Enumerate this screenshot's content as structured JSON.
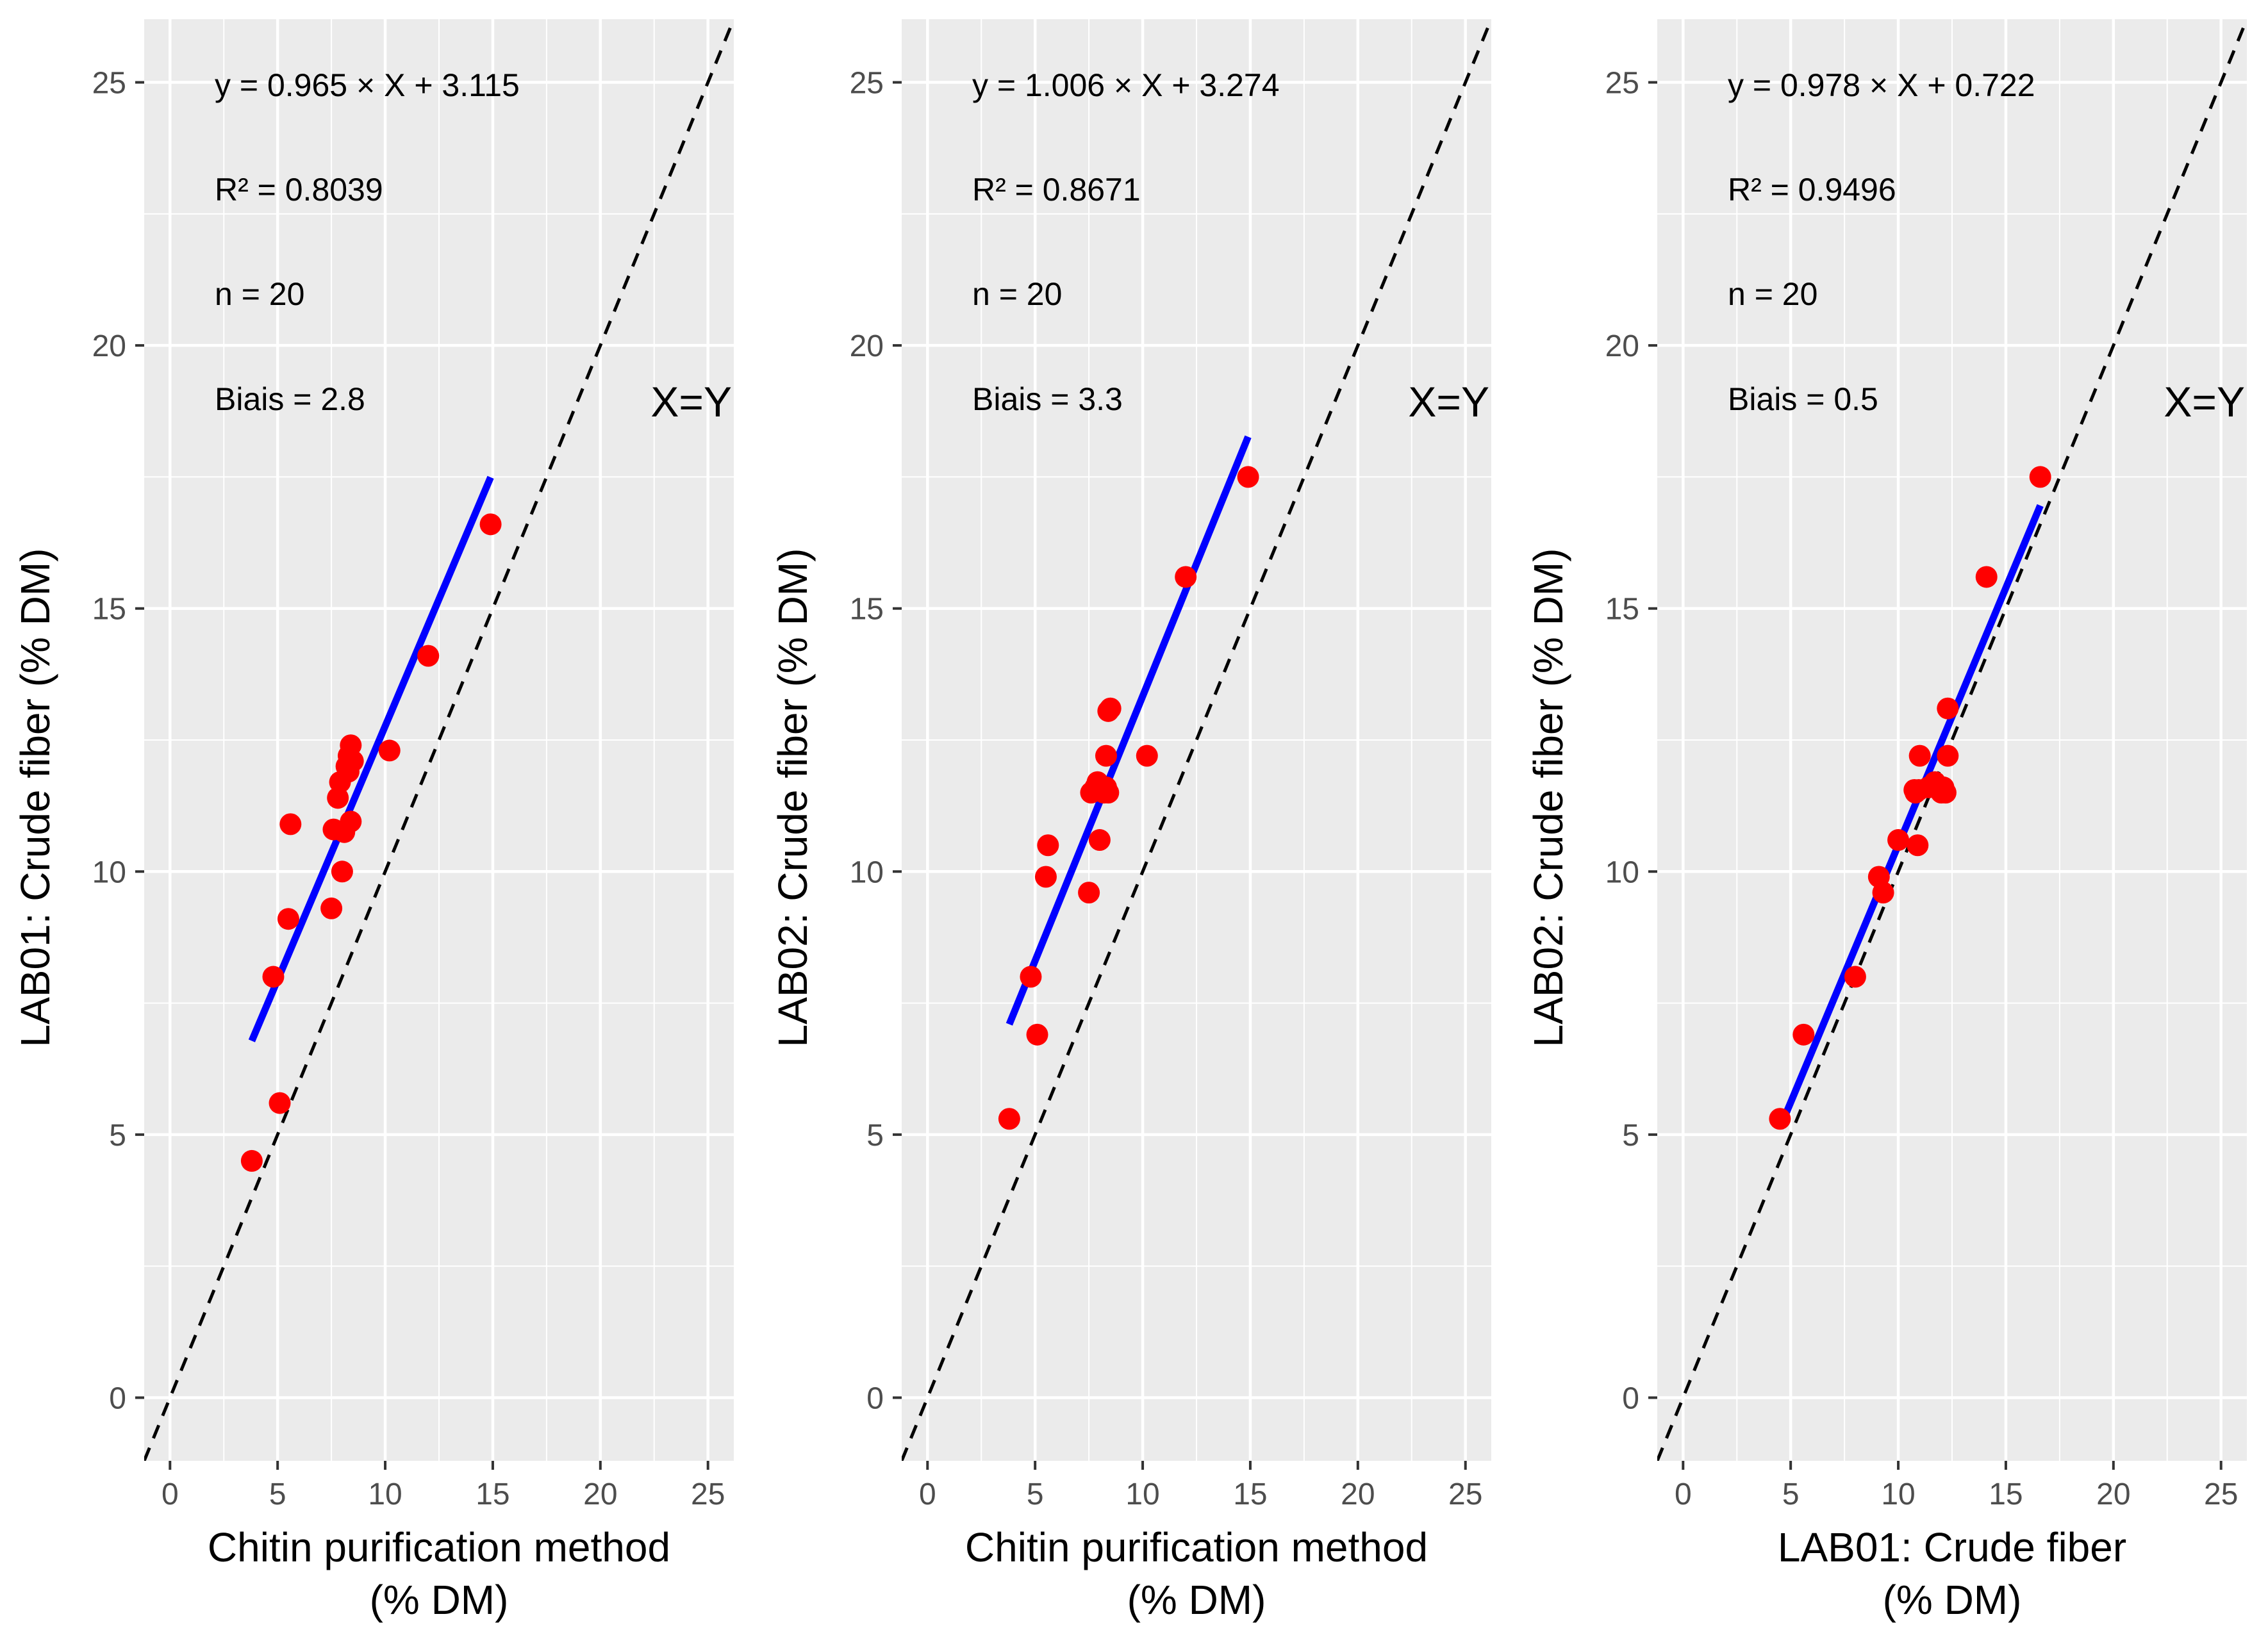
{
  "colors": {
    "panel_bg": "#EBEBEB",
    "grid": "#FFFFFF",
    "points": "#FF0000",
    "fit_line": "#0000FF",
    "identity_line": "#000000",
    "text": "#000000",
    "tick_text": "#4D4D4D"
  },
  "chart_data": [
    {
      "type": "scatter",
      "xlabel": [
        "Chitin purification method",
        "(% DM)"
      ],
      "ylabel": "LAB01: Crude fiber (% DM)",
      "xlim": [
        -1.2,
        26.2
      ],
      "ylim": [
        -1.2,
        26.2
      ],
      "xticks": [
        0,
        5,
        10,
        15,
        20,
        25
      ],
      "yticks": [
        0,
        5,
        10,
        15,
        20,
        25
      ],
      "grid": true,
      "annotations": {
        "equation": "y =  0.965  × X + 3.115",
        "r2": "R² =  0.8039",
        "n": "n =  20",
        "bias": "Biais =  2.8",
        "identity_label": "X=Y"
      },
      "fit": {
        "slope": 0.965,
        "intercept": 3.115,
        "x_range": [
          3.8,
          14.9
        ]
      },
      "points": [
        {
          "x": 3.8,
          "y": 4.5
        },
        {
          "x": 5.1,
          "y": 5.6
        },
        {
          "x": 4.8,
          "y": 8.0
        },
        {
          "x": 5.5,
          "y": 9.1
        },
        {
          "x": 5.6,
          "y": 10.9
        },
        {
          "x": 7.5,
          "y": 9.3
        },
        {
          "x": 8.0,
          "y": 10.0
        },
        {
          "x": 7.6,
          "y": 10.8
        },
        {
          "x": 8.1,
          "y": 10.75
        },
        {
          "x": 8.4,
          "y": 10.95
        },
        {
          "x": 7.8,
          "y": 11.4
        },
        {
          "x": 7.9,
          "y": 11.7
        },
        {
          "x": 8.2,
          "y": 12.0
        },
        {
          "x": 8.5,
          "y": 12.1
        },
        {
          "x": 8.3,
          "y": 12.2
        },
        {
          "x": 8.4,
          "y": 12.4
        },
        {
          "x": 10.2,
          "y": 12.3
        },
        {
          "x": 12.0,
          "y": 14.1
        },
        {
          "x": 14.9,
          "y": 16.6
        },
        {
          "x": 8.3,
          "y": 11.9
        }
      ]
    },
    {
      "type": "scatter",
      "xlabel": [
        "Chitin purification method",
        "(% DM)"
      ],
      "ylabel": "LAB02: Crude fiber  (% DM)",
      "xlim": [
        -1.2,
        26.2
      ],
      "ylim": [
        -1.2,
        26.2
      ],
      "xticks": [
        0,
        5,
        10,
        15,
        20,
        25
      ],
      "yticks": [
        0,
        5,
        10,
        15,
        20,
        25
      ],
      "grid": true,
      "annotations": {
        "equation": "y =  1.006  × X +  3.274",
        "r2": "R² =  0.8671",
        "n": "n =  20",
        "bias": "Biais =  3.3",
        "identity_label": "X=Y"
      },
      "fit": {
        "slope": 1.006,
        "intercept": 3.274,
        "x_range": [
          3.8,
          14.9
        ]
      },
      "points": [
        {
          "x": 3.8,
          "y": 5.3
        },
        {
          "x": 5.1,
          "y": 6.9
        },
        {
          "x": 4.8,
          "y": 8.0
        },
        {
          "x": 5.5,
          "y": 9.9
        },
        {
          "x": 5.6,
          "y": 10.5
        },
        {
          "x": 7.5,
          "y": 9.6
        },
        {
          "x": 8.0,
          "y": 10.6
        },
        {
          "x": 7.6,
          "y": 11.5
        },
        {
          "x": 8.1,
          "y": 11.55
        },
        {
          "x": 8.4,
          "y": 11.5
        },
        {
          "x": 7.8,
          "y": 11.6
        },
        {
          "x": 7.9,
          "y": 11.7
        },
        {
          "x": 8.2,
          "y": 11.5
        },
        {
          "x": 8.5,
          "y": 13.1
        },
        {
          "x": 8.3,
          "y": 12.2
        },
        {
          "x": 8.4,
          "y": 13.05
        },
        {
          "x": 10.2,
          "y": 12.2
        },
        {
          "x": 12.0,
          "y": 15.6
        },
        {
          "x": 14.9,
          "y": 17.5
        },
        {
          "x": 8.3,
          "y": 11.6
        }
      ]
    },
    {
      "type": "scatter",
      "xlabel": [
        "LAB01: Crude fiber",
        "(% DM)"
      ],
      "ylabel": "LAB02: Crude fiber (% DM)",
      "xlim": [
        -1.2,
        26.2
      ],
      "ylim": [
        -1.2,
        26.2
      ],
      "xticks": [
        0,
        5,
        10,
        15,
        20,
        25
      ],
      "yticks": [
        0,
        5,
        10,
        15,
        20,
        25
      ],
      "grid": true,
      "annotations": {
        "equation": "y =  0.978  × X +  0.722",
        "r2": "R² =  0.9496",
        "n": "n =  20",
        "bias": "Biais =  0.5",
        "identity_label": "X=Y"
      },
      "fit": {
        "slope": 0.978,
        "intercept": 0.722,
        "x_range": [
          4.5,
          16.6
        ]
      },
      "points": [
        {
          "x": 4.5,
          "y": 5.3
        },
        {
          "x": 5.6,
          "y": 6.9
        },
        {
          "x": 8.0,
          "y": 8.0
        },
        {
          "x": 9.1,
          "y": 9.9
        },
        {
          "x": 9.3,
          "y": 9.6
        },
        {
          "x": 10.0,
          "y": 10.6
        },
        {
          "x": 10.9,
          "y": 10.5
        },
        {
          "x": 10.75,
          "y": 11.55
        },
        {
          "x": 10.8,
          "y": 11.5
        },
        {
          "x": 11.0,
          "y": 12.2
        },
        {
          "x": 11.4,
          "y": 11.6
        },
        {
          "x": 11.7,
          "y": 11.7
        },
        {
          "x": 12.0,
          "y": 11.5
        },
        {
          "x": 12.2,
          "y": 11.5
        },
        {
          "x": 12.3,
          "y": 12.2
        },
        {
          "x": 12.3,
          "y": 13.1
        },
        {
          "x": 14.1,
          "y": 15.6
        },
        {
          "x": 16.6,
          "y": 17.5
        },
        {
          "x": 10.95,
          "y": 11.55
        },
        {
          "x": 12.1,
          "y": 11.6
        }
      ]
    }
  ]
}
